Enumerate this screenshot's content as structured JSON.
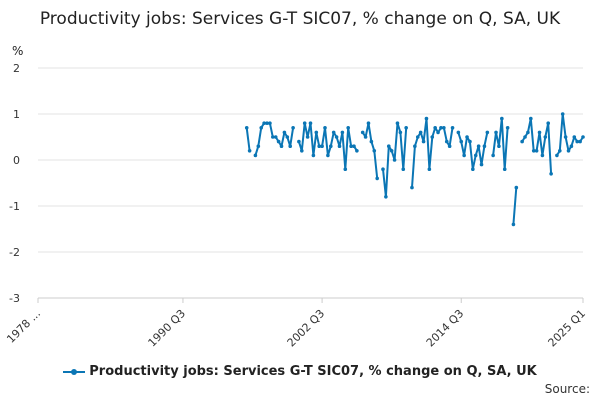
{
  "chart_data": {
    "type": "line",
    "title": "Productivity jobs: Services G-T SIC07, % change on Q, SA, UK",
    "ylabel": "%",
    "ylim": [
      -3,
      2
    ],
    "yticks": [
      2,
      1,
      0,
      -1,
      -2,
      -3
    ],
    "xlim": [
      "1978 Q1",
      "2025 Q1"
    ],
    "xticks": [
      "1978 ...",
      "1990 Q3",
      "2002 Q3",
      "2014 Q3",
      "2025 Q1"
    ],
    "grid": true,
    "legend_position": "bottom",
    "color": "#0b76b5",
    "series": [
      {
        "name": "Productivity jobs: Services G-T SIC07, % change on Q, SA, UK",
        "points": [
          [
            "1996 Q1",
            0.7
          ],
          [
            "1996 Q2",
            0.2
          ],
          [
            "1996 Q3",
            null
          ],
          [
            "1996 Q4",
            0.1
          ],
          [
            "1997 Q1",
            0.3
          ],
          [
            "1997 Q2",
            0.7
          ],
          [
            "1997 Q3",
            0.8
          ],
          [
            "1997 Q4",
            0.8
          ],
          [
            "1998 Q1",
            0.8
          ],
          [
            "1998 Q2",
            0.5
          ],
          [
            "1998 Q3",
            0.5
          ],
          [
            "1998 Q4",
            0.4
          ],
          [
            "1999 Q1",
            0.3
          ],
          [
            "1999 Q2",
            0.6
          ],
          [
            "1999 Q3",
            0.5
          ],
          [
            "1999 Q4",
            0.3
          ],
          [
            "2000 Q1",
            0.7
          ],
          [
            "2000 Q2",
            null
          ],
          [
            "2000 Q3",
            0.4
          ],
          [
            "2000 Q4",
            0.2
          ],
          [
            "2001 Q1",
            0.8
          ],
          [
            "2001 Q2",
            0.5
          ],
          [
            "2001 Q3",
            0.8
          ],
          [
            "2001 Q4",
            0.1
          ],
          [
            "2002 Q1",
            0.6
          ],
          [
            "2002 Q2",
            0.3
          ],
          [
            "2002 Q3",
            0.3
          ],
          [
            "2002 Q4",
            0.7
          ],
          [
            "2003 Q1",
            0.1
          ],
          [
            "2003 Q2",
            0.3
          ],
          [
            "2003 Q3",
            0.6
          ],
          [
            "2003 Q4",
            0.5
          ],
          [
            "2004 Q1",
            0.3
          ],
          [
            "2004 Q2",
            0.6
          ],
          [
            "2004 Q3",
            -0.2
          ],
          [
            "2004 Q4",
            0.7
          ],
          [
            "2005 Q1",
            0.3
          ],
          [
            "2005 Q2",
            0.3
          ],
          [
            "2005 Q3",
            0.2
          ],
          [
            "2005 Q4",
            null
          ],
          [
            "2006 Q1",
            0.6
          ],
          [
            "2006 Q2",
            0.5
          ],
          [
            "2006 Q3",
            0.8
          ],
          [
            "2006 Q4",
            0.4
          ],
          [
            "2007 Q1",
            0.2
          ],
          [
            "2007 Q2",
            -0.4
          ],
          [
            "2007 Q3",
            null
          ],
          [
            "2007 Q4",
            -0.2
          ],
          [
            "2008 Q1",
            -0.8
          ],
          [
            "2008 Q2",
            0.3
          ],
          [
            "2008 Q3",
            0.2
          ],
          [
            "2008 Q4",
            0.0
          ],
          [
            "2009 Q1",
            0.8
          ],
          [
            "2009 Q2",
            0.6
          ],
          [
            "2009 Q3",
            -0.2
          ],
          [
            "2009 Q4",
            0.7
          ],
          [
            "2010 Q1",
            null
          ],
          [
            "2010 Q2",
            -0.6
          ],
          [
            "2010 Q3",
            0.3
          ],
          [
            "2010 Q4",
            0.5
          ],
          [
            "2011 Q1",
            0.6
          ],
          [
            "2011 Q2",
            0.4
          ],
          [
            "2011 Q3",
            0.9
          ],
          [
            "2011 Q4",
            -0.2
          ],
          [
            "2012 Q1",
            0.5
          ],
          [
            "2012 Q2",
            0.7
          ],
          [
            "2012 Q3",
            0.6
          ],
          [
            "2012 Q4",
            0.7
          ],
          [
            "2013 Q1",
            0.7
          ],
          [
            "2013 Q2",
            0.4
          ],
          [
            "2013 Q3",
            0.3
          ],
          [
            "2013 Q4",
            0.7
          ],
          [
            "2014 Q1",
            null
          ],
          [
            "2014 Q2",
            0.6
          ],
          [
            "2014 Q3",
            0.4
          ],
          [
            "2014 Q4",
            0.1
          ],
          [
            "2015 Q1",
            0.5
          ],
          [
            "2015 Q2",
            0.4
          ],
          [
            "2015 Q3",
            -0.2
          ],
          [
            "2015 Q4",
            0.1
          ],
          [
            "2016 Q1",
            0.3
          ],
          [
            "2016 Q2",
            -0.1
          ],
          [
            "2016 Q3",
            0.3
          ],
          [
            "2016 Q4",
            0.6
          ],
          [
            "2017 Q1",
            null
          ],
          [
            "2017 Q2",
            0.1
          ],
          [
            "2017 Q3",
            0.6
          ],
          [
            "2017 Q4",
            0.3
          ],
          [
            "2018 Q1",
            0.9
          ],
          [
            "2018 Q2",
            -0.2
          ],
          [
            "2018 Q3",
            0.7
          ],
          [
            "2018 Q4",
            null
          ],
          [
            "2019 Q1",
            -1.4
          ],
          [
            "2019 Q2",
            -0.6
          ],
          [
            "2019 Q3",
            null
          ],
          [
            "2019 Q4",
            0.4
          ],
          [
            "2020 Q1",
            0.5
          ],
          [
            "2020 Q2",
            0.6
          ],
          [
            "2020 Q3",
            0.9
          ],
          [
            "2020 Q4",
            0.2
          ],
          [
            "2021 Q1",
            0.2
          ],
          [
            "2021 Q2",
            0.6
          ],
          [
            "2021 Q3",
            0.1
          ],
          [
            "2021 Q4",
            0.5
          ],
          [
            "2022 Q1",
            0.8
          ],
          [
            "2022 Q2",
            -0.3
          ],
          [
            "2022 Q3",
            null
          ],
          [
            "2022 Q4",
            0.1
          ],
          [
            "2023 Q1",
            0.2
          ],
          [
            "2023 Q2",
            1.0
          ],
          [
            "2023 Q3",
            0.5
          ],
          [
            "2023 Q4",
            0.2
          ],
          [
            "2024 Q1",
            0.3
          ],
          [
            "2024 Q2",
            0.5
          ],
          [
            "2024 Q3",
            0.4
          ],
          [
            "2024 Q4",
            0.4
          ],
          [
            "2025 Q1",
            0.5
          ]
        ]
      }
    ]
  },
  "source_label": "Source:"
}
